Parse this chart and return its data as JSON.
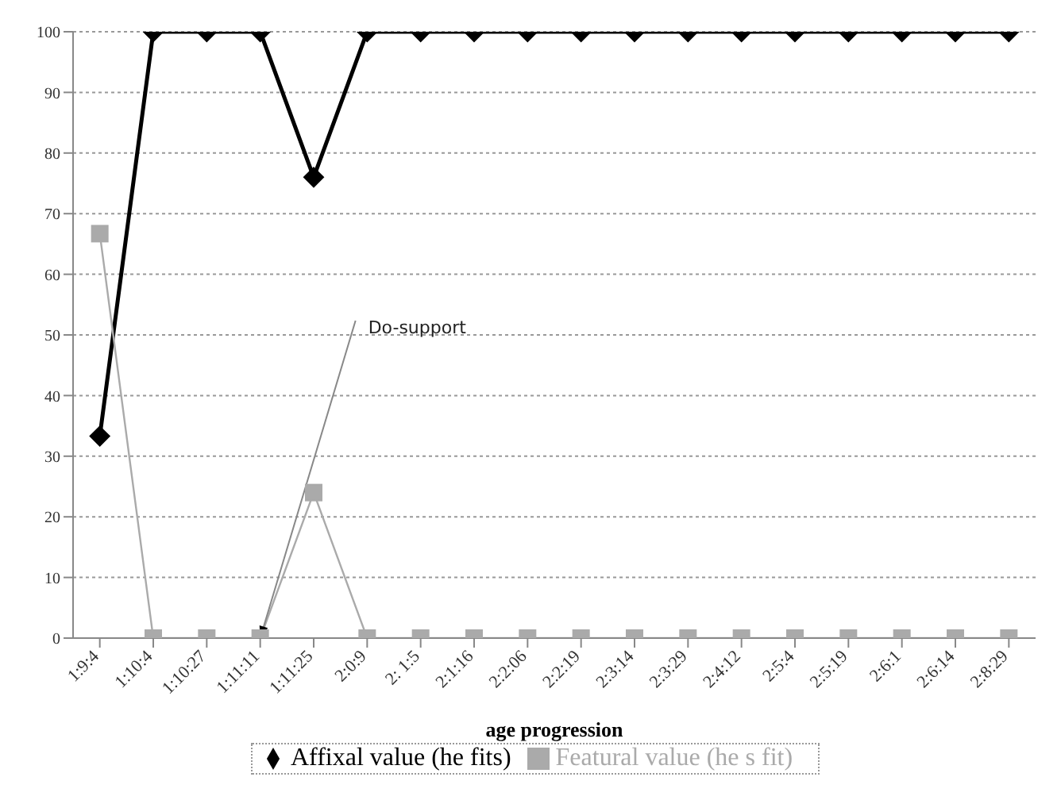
{
  "chart_data": {
    "type": "line",
    "xlabel": "age progression",
    "categories": [
      "1:9:4",
      "1:10:4",
      "1:10:27",
      "1:11:11",
      "1:11:25",
      "2:0:9",
      "2: 1:5",
      "2:1:16",
      "2:2:06",
      "2:2:19",
      "2:3:14",
      "2:3:29",
      "2:4:12",
      "2:5:4",
      "2:5:19",
      "2:6:1",
      "2:6:14",
      "2:8:29"
    ],
    "series": [
      {
        "name": "Affixal value (he fits)",
        "color": "#000000",
        "marker": "diamond",
        "values": [
          33.3,
          100,
          100,
          100,
          76,
          100,
          100,
          100,
          100,
          100,
          100,
          100,
          100,
          100,
          100,
          100,
          100,
          100
        ]
      },
      {
        "name": "Featural value (he s fit)",
        "color": "#aaaaaa",
        "marker": "square",
        "values": [
          66.7,
          0,
          0,
          0,
          24,
          0,
          0,
          0,
          0,
          0,
          0,
          0,
          0,
          0,
          0,
          0,
          0,
          0
        ]
      }
    ],
    "ylim": [
      0,
      100
    ],
    "yticks": [
      0,
      10,
      20,
      30,
      40,
      50,
      60,
      70,
      80,
      90,
      100
    ],
    "grid": "y",
    "legend": "bottom",
    "annotations": [
      {
        "text": "Do-support",
        "x": "1:11:11",
        "y": 0
      }
    ]
  }
}
